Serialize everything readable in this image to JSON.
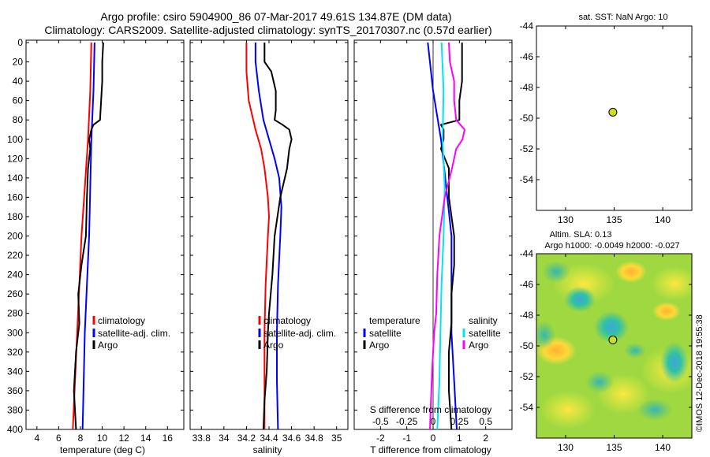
{
  "header": {
    "line1": "Argo profile: csiro 5904900_86 07-Mar-2017 49.61S 134.87E (DM data)",
    "line2": "Climatology: CARS2009. Satellite-adjusted climatology: synTS_20170307.nc (0.57d earlier)"
  },
  "watermark": "©IMOS 12-Dec-2018 19:55:38",
  "colors": {
    "climatology": "#ff0000",
    "satellite": "#0000ff",
    "argo": "#000000",
    "s_sat": "#00e5ee",
    "s_argo": "#ff00ff",
    "marker": "#ccdd22"
  },
  "chart_data": [
    {
      "id": "temperature",
      "type": "line",
      "xlabel": "temperature (deg C)",
      "xlim": [
        3,
        17.5
      ],
      "xticks": [
        4,
        6,
        8,
        10,
        12,
        14,
        16
      ],
      "xtick_labels": [
        "4",
        "6",
        "8",
        "10",
        "12",
        "14",
        "16"
      ],
      "ylim": [
        0,
        400
      ],
      "yticks": [
        0,
        20,
        40,
        60,
        80,
        100,
        120,
        140,
        160,
        180,
        200,
        220,
        240,
        260,
        280,
        300,
        320,
        340,
        360,
        380,
        400
      ],
      "ytick_labels": [
        "0",
        "20",
        "40",
        "60",
        "80",
        "100",
        "120",
        "140",
        "160",
        "180",
        "200",
        "220",
        "240",
        "260",
        "280",
        "300",
        "320",
        "340",
        "360",
        "380",
        "400"
      ],
      "legend": [
        "climatology",
        "satellite-adj. clim.",
        "Argo"
      ],
      "series": [
        {
          "name": "climatology",
          "color": "#ff0000",
          "depth": [
            0,
            50,
            100,
            150,
            200,
            250,
            300,
            350,
            400
          ],
          "values": [
            9.0,
            8.9,
            8.7,
            8.4,
            8.1,
            7.9,
            7.7,
            7.5,
            7.3
          ]
        },
        {
          "name": "satellite-adj. clim.",
          "color": "#0000ff",
          "depth": [
            0,
            50,
            100,
            150,
            200,
            250,
            300,
            350,
            400
          ],
          "values": [
            9.3,
            9.2,
            9.0,
            8.9,
            8.8,
            8.6,
            8.4,
            8.3,
            8.2
          ]
        },
        {
          "name": "Argo",
          "color": "#000000",
          "depth": [
            0,
            20,
            40,
            60,
            80,
            85,
            90,
            100,
            110,
            130,
            160,
            200,
            230,
            260,
            290,
            320,
            360,
            400
          ],
          "values": [
            10.1,
            10.0,
            10.0,
            9.9,
            9.8,
            9.2,
            9.0,
            8.8,
            8.9,
            8.7,
            8.6,
            8.5,
            8.1,
            7.8,
            7.9,
            7.6,
            7.4,
            7.6
          ]
        }
      ]
    },
    {
      "id": "salinity",
      "type": "line",
      "xlabel": "salinity",
      "xlim": [
        33.7,
        35.1
      ],
      "xticks": [
        33.8,
        34,
        34.2,
        34.4,
        34.6,
        34.8,
        35
      ],
      "xtick_labels": [
        "33.8",
        "34",
        "34.2",
        "34.4",
        "34.6",
        "34.8",
        "35"
      ],
      "ylim": [
        0,
        400
      ],
      "legend": [
        "climatology",
        "satellite-adj. clim.",
        "Argo"
      ],
      "series": [
        {
          "name": "climatology",
          "color": "#ff0000",
          "depth": [
            0,
            30,
            60,
            90,
            110,
            130,
            160,
            180,
            200,
            250,
            300,
            350,
            400
          ],
          "values": [
            34.2,
            34.2,
            34.22,
            34.28,
            34.33,
            34.36,
            34.39,
            34.4,
            34.39,
            34.37,
            34.36,
            34.36,
            34.36
          ]
        },
        {
          "name": "satellite-adj. clim.",
          "color": "#0000ff",
          "depth": [
            0,
            20,
            50,
            80,
            100,
            120,
            140,
            170,
            200,
            250,
            300,
            350,
            400
          ],
          "values": [
            34.28,
            34.28,
            34.31,
            34.35,
            34.4,
            34.45,
            34.49,
            34.51,
            34.5,
            34.48,
            34.47,
            34.47,
            34.48
          ]
        },
        {
          "name": "Argo",
          "color": "#000000",
          "depth": [
            0,
            20,
            30,
            50,
            70,
            80,
            85,
            90,
            95,
            100,
            110,
            130,
            160,
            200,
            240,
            280,
            300,
            340,
            370,
            400
          ],
          "values": [
            34.36,
            34.36,
            34.42,
            34.46,
            34.46,
            34.45,
            34.52,
            34.58,
            34.59,
            34.6,
            34.58,
            34.56,
            34.5,
            34.45,
            34.43,
            34.4,
            34.39,
            34.38,
            34.36,
            34.35
          ]
        }
      ]
    },
    {
      "id": "difference",
      "type": "line",
      "xlabel": "T difference from climatology",
      "xlim": [
        -3,
        3
      ],
      "xticks": [
        -2,
        -1,
        0,
        1,
        2
      ],
      "xtick_labels": [
        "-2",
        "-1",
        "0",
        "1",
        "2"
      ],
      "s_label": "S difference from climatology",
      "s_xlim": [
        -0.75,
        0.75
      ],
      "s_ticks": [
        -0.5,
        -0.25,
        0,
        0.25,
        0.5
      ],
      "s_tick_labels": [
        "-0.5",
        "-0.25",
        "0",
        "0.25",
        "0.5"
      ],
      "ylim": [
        0,
        400
      ],
      "legend_temperature": {
        "title": "temperature",
        "items": [
          "satellite",
          "Argo"
        ]
      },
      "legend_salinity": {
        "title": "salinity",
        "items": [
          "satellite",
          "Argo"
        ]
      },
      "series": [
        {
          "name": "T satellite",
          "color": "#0000ff",
          "depth": [
            0,
            50,
            100,
            150,
            200,
            250,
            300,
            350,
            400
          ],
          "values": [
            -0.2,
            0.0,
            0.3,
            0.5,
            0.7,
            0.7,
            0.7,
            0.8,
            0.9
          ]
        },
        {
          "name": "T Argo",
          "color": "#000000",
          "depth": [
            0,
            20,
            40,
            60,
            80,
            85,
            90,
            100,
            110,
            130,
            160,
            200,
            230,
            260,
            290,
            320,
            360,
            400
          ],
          "values": [
            1.1,
            1.1,
            1.1,
            1.0,
            1.0,
            0.3,
            0.4,
            0.4,
            0.3,
            0.6,
            0.6,
            0.8,
            0.8,
            0.7,
            0.7,
            0.6,
            0.6,
            0.7
          ]
        },
        {
          "name": "S satellite",
          "color": "#00e5ee",
          "depth": [
            0,
            50,
            100,
            150,
            200,
            250,
            300,
            350,
            400
          ],
          "values": [
            0.08,
            0.1,
            0.09,
            0.11,
            0.1,
            0.08,
            0.07,
            0.06,
            0.04
          ]
        },
        {
          "name": "S Argo",
          "color": "#ff00ff",
          "depth": [
            0,
            20,
            40,
            60,
            80,
            90,
            100,
            110,
            130,
            160,
            200,
            240,
            280,
            300,
            340,
            370,
            400
          ],
          "values": [
            0.15,
            0.16,
            0.2,
            0.2,
            0.22,
            0.3,
            0.28,
            0.22,
            0.18,
            0.11,
            0.06,
            0.04,
            0.03,
            0.01,
            -0.01,
            -0.02,
            -0.03
          ]
        }
      ]
    },
    {
      "id": "sst_map",
      "type": "scatter",
      "title": "sat. SST: NaN Argo: 10",
      "xlim": [
        127,
        143
      ],
      "ylim": [
        -56,
        -44
      ],
      "xticks": [
        130,
        135,
        140
      ],
      "xtick_labels": [
        "130",
        "135",
        "140"
      ],
      "yticks": [
        -44,
        -46,
        -48,
        -50,
        -52,
        -54
      ],
      "ytick_labels": [
        "-44",
        "-46",
        "-48",
        "-50",
        "-52",
        "-54"
      ],
      "points": [
        {
          "lon": 134.87,
          "lat": -49.61
        }
      ]
    },
    {
      "id": "sla_map",
      "type": "heatmap",
      "title_line1": "Altim. SLA: 0.13",
      "title_line2": "Argo h1000: -0.0049 h2000: -0.027",
      "xlim": [
        127,
        143
      ],
      "ylim": [
        -56,
        -44
      ],
      "xticks": [
        130,
        135,
        140
      ],
      "xtick_labels": [
        "130",
        "135",
        "140"
      ],
      "yticks": [
        -44,
        -46,
        -48,
        -50,
        -52,
        -54
      ],
      "ytick_labels": [
        "-44",
        "-46",
        "-48",
        "-50",
        "-52",
        "-54"
      ],
      "points": [
        {
          "lon": 134.87,
          "lat": -49.61
        }
      ]
    }
  ]
}
